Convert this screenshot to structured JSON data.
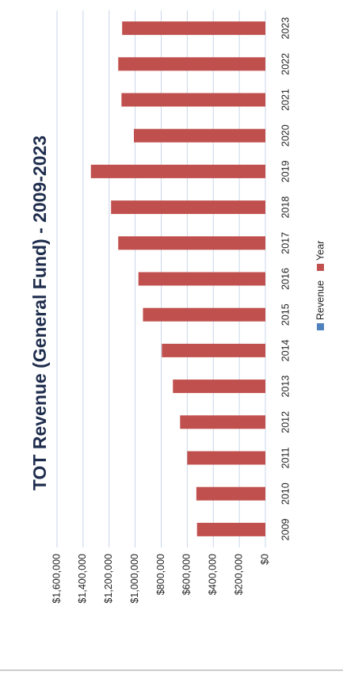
{
  "chart_data": {
    "type": "bar",
    "title": "TOT Revenue (General Fund) - 2009-2023",
    "categories": [
      "2009",
      "2010",
      "2011",
      "2012",
      "2013",
      "2014",
      "2015",
      "2016",
      "2017",
      "2018",
      "2019",
      "2020",
      "2021",
      "2022",
      "2023"
    ],
    "series": [
      {
        "name": "Revenue",
        "color": "#4f81bd",
        "values": [
          null,
          null,
          null,
          null,
          null,
          null,
          null,
          null,
          null,
          null,
          null,
          null,
          null,
          null,
          null
        ]
      },
      {
        "name": "Year",
        "color": "#c0504d",
        "values": [
          525000,
          530000,
          600000,
          655000,
          710000,
          795000,
          940000,
          975000,
          1130000,
          1185000,
          1340000,
          1010000,
          1105000,
          1130000,
          1100000
        ]
      }
    ],
    "ylim": [
      0,
      1600000
    ],
    "yticks": [
      {
        "value": 0,
        "label": "$0"
      },
      {
        "value": 200000,
        "label": "$200,000"
      },
      {
        "value": 400000,
        "label": "$400,000"
      },
      {
        "value": 600000,
        "label": "$600,000"
      },
      {
        "value": 800000,
        "label": "$800,000"
      },
      {
        "value": 1000000,
        "label": "$1,000,000"
      },
      {
        "value": 1200000,
        "label": "$1,200,000"
      },
      {
        "value": 1400000,
        "label": "$1,400,000"
      },
      {
        "value": 1600000,
        "label": "$1,600,000"
      }
    ],
    "grid": true
  }
}
